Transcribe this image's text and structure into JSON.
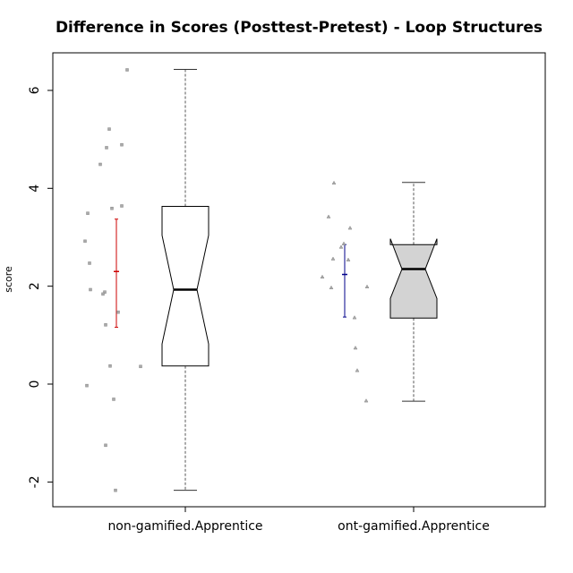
{
  "chart_data": {
    "type": "boxplot",
    "title": "Difference in Scores (Posttest-Pretest) - Loop Structures",
    "xlabel": "",
    "ylabel": "score",
    "ylim": [
      -2.5,
      6.8
    ],
    "yticks": [
      -2,
      0,
      2,
      4,
      6
    ],
    "ytick_labels": [
      "-2",
      "0",
      "2",
      "4",
      "6"
    ],
    "grid": false,
    "groups": [
      {
        "label": "non-gamified.Apprentice",
        "box_fill": "#ffffff",
        "whisker_low": -2.17,
        "q1": 0.37,
        "median": 1.93,
        "q3": 3.63,
        "whisker_high": 6.43,
        "notch_low": 0.82,
        "notch_high": 3.04,
        "mean": 2.3,
        "mean_ci_low": 1.16,
        "mean_ci_high": 3.37,
        "mean_color": "#cc0000",
        "point_marker": "square",
        "points": [
          [
            -0.65,
            6.42
          ],
          [
            -0.85,
            5.21
          ],
          [
            -0.71,
            4.89
          ],
          [
            -0.88,
            4.83
          ],
          [
            -0.95,
            4.49
          ],
          [
            -0.71,
            3.64
          ],
          [
            -0.82,
            3.59
          ],
          [
            -1.09,
            3.49
          ],
          [
            -1.12,
            2.92
          ],
          [
            -1.07,
            2.47
          ],
          [
            -1.06,
            1.93
          ],
          [
            -0.9,
            1.88
          ],
          [
            -0.92,
            1.84
          ],
          [
            -0.75,
            1.47
          ],
          [
            -0.89,
            1.21
          ],
          [
            -0.5,
            0.36
          ],
          [
            -0.84,
            0.37
          ],
          [
            -1.1,
            -0.03
          ],
          [
            -0.8,
            -0.31
          ],
          [
            -0.89,
            -1.25
          ],
          [
            -0.78,
            -2.17
          ]
        ]
      },
      {
        "label": "ont-gamified.Apprentice",
        "box_fill": "#d3d3d3",
        "whisker_low": -0.35,
        "q1": 1.35,
        "median": 2.35,
        "q3": 2.85,
        "whisker_high": 4.12,
        "notch_low": 1.75,
        "notch_high": 2.97,
        "mean": 2.24,
        "mean_ci_low": 1.37,
        "mean_ci_high": 2.85,
        "mean_color": "#00008b",
        "point_marker": "triangle",
        "points": [
          [
            -0.89,
            4.11
          ],
          [
            -0.95,
            3.42
          ],
          [
            -0.71,
            3.19
          ],
          [
            -0.78,
            2.87
          ],
          [
            -0.81,
            2.8
          ],
          [
            -0.9,
            2.56
          ],
          [
            -0.73,
            2.54
          ],
          [
            -1.02,
            2.19
          ],
          [
            -0.92,
            1.97
          ],
          [
            -0.52,
            1.99
          ],
          [
            -0.66,
            1.36
          ],
          [
            -0.65,
            0.74
          ],
          [
            -0.63,
            0.28
          ],
          [
            -0.53,
            -0.34
          ]
        ]
      }
    ]
  }
}
